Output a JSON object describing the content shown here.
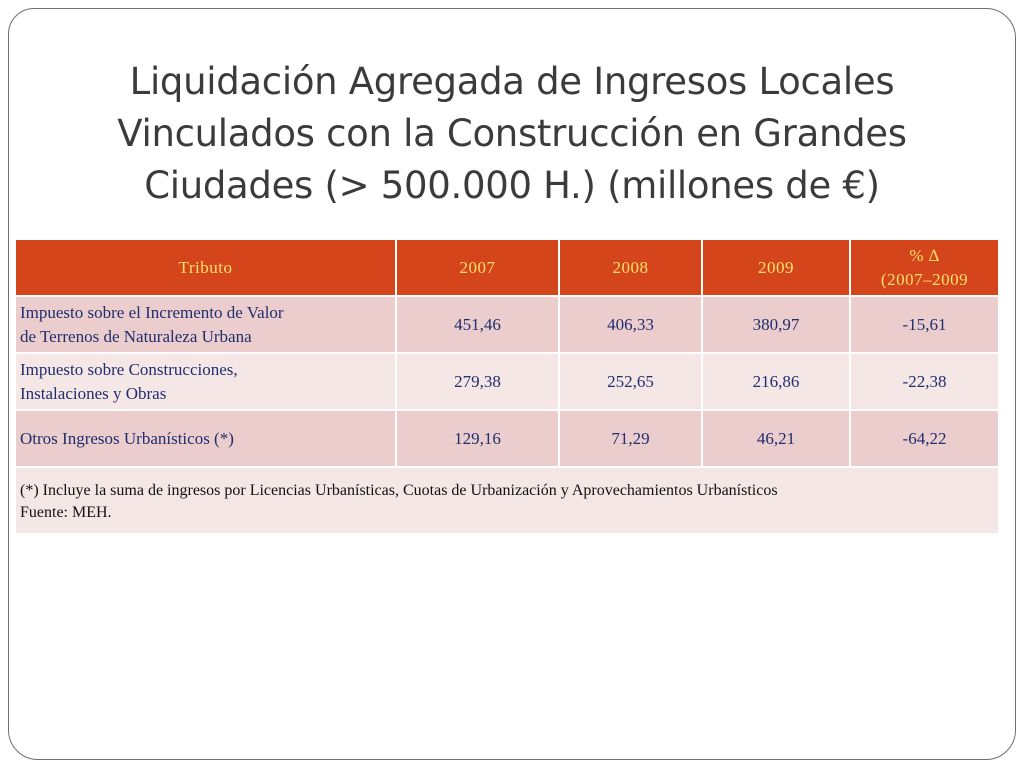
{
  "slide": {
    "title_line1": "Liquidación Agregada de Ingresos Locales",
    "title_line2": "Vinculados con la Construcción en Grandes",
    "title_line3": "Ciudades (> 500.000 H.) (millones de €)"
  },
  "table": {
    "headers": {
      "tributo": "Tributo",
      "y2007": "2007",
      "y2008": "2008",
      "y2009": "2009",
      "change_line1": "%  ∆",
      "change_line2": "(2007–2009"
    },
    "rows": [
      {
        "label_line1": "Impuesto sobre el Incremento de Valor",
        "label_line2": "de Terrenos de Naturaleza Urbana",
        "v2007": "451,46",
        "v2008": "406,33",
        "v2009": "380,97",
        "change": "-15,61"
      },
      {
        "label_line1": "Impuesto sobre Construcciones,",
        "label_line2": "Instalaciones y Obras",
        "v2007": "279,38",
        "v2008": "252,65",
        "v2009": "216,86",
        "change": "-22,38"
      },
      {
        "label_line1": "Otros Ingresos Urbanísticos (*)",
        "label_line2": "",
        "v2007": "129,16",
        "v2008": "71,29",
        "v2009": "46,21",
        "change": "-64,22"
      }
    ],
    "footnote_line1": "(*) Incluye la suma de ingresos por Licencias Urbanísticas, Cuotas de Urbanización y Aprovechamientos Urbanísticos",
    "footnote_line2": "Fuente: MEH."
  },
  "colors": {
    "header_bg": "#d5451c",
    "header_text": "#ffe06a",
    "row_dark": "#eccdcd",
    "row_light": "#f6e7e7",
    "body_text": "#1f2e6e"
  }
}
